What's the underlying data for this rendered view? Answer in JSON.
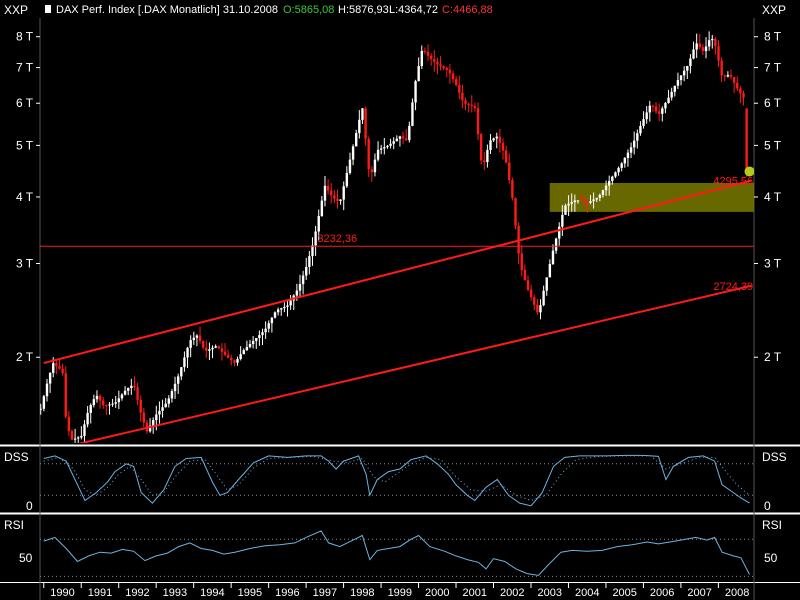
{
  "header": {
    "instrument": "DAX Perf. Index [.DAX  Monatlich] 31.10.2008",
    "open": "O:5865,08",
    "high": "H:5876,93",
    "low": "L:4364,72",
    "close": "C:4466,88",
    "axis_tag_left": "XXP",
    "axis_tag_right": "XXP"
  },
  "colors": {
    "background": "#000000",
    "text": "#ffffff",
    "trend": "#ff1a1a",
    "open_value": "#37c837",
    "close_value": "#ff3333",
    "zone": "#7a7a00",
    "indicator": "#6fb2e0",
    "grid": "#8a8a8a",
    "panel_border": "#ffffff",
    "marker": "#b6c81a"
  },
  "chart_data": [
    {
      "type": "candlestick",
      "title": "DAX Perf. Index [.DAX  Monatlich] 31.10.2008",
      "y_scale": "log",
      "ylim": [
        1380,
        8600
      ],
      "y_ticks": [
        2000,
        3000,
        4000,
        5000,
        6000,
        7000,
        8000
      ],
      "y_tick_labels": [
        "2 T",
        "3 T",
        "4 T",
        "5 T",
        "6 T",
        "7 T",
        "8 T"
      ],
      "x_range": [
        1989.9,
        2008.95
      ],
      "x_tick_labels": [
        "1990",
        "1991",
        "1992",
        "1993",
        "1994",
        "1995",
        "1996",
        "1997",
        "1998",
        "1999",
        "2000",
        "2001",
        "2002",
        "2003",
        "2004",
        "2005",
        "2006",
        "2007",
        "2008"
      ],
      "last_bar": {
        "open": 5865.08,
        "high": 5876.93,
        "low": 4364.72,
        "close": 4466.88,
        "date": "31.10.2008"
      },
      "path_points": [
        [
          1989.92,
          1600
        ],
        [
          1990.1,
          1800
        ],
        [
          1990.25,
          1950
        ],
        [
          1990.5,
          1880
        ],
        [
          1990.6,
          1500
        ],
        [
          1990.75,
          1400
        ],
        [
          1991.0,
          1420
        ],
        [
          1991.2,
          1600
        ],
        [
          1991.4,
          1700
        ],
        [
          1991.6,
          1620
        ],
        [
          1991.9,
          1640
        ],
        [
          1992.2,
          1740
        ],
        [
          1992.4,
          1780
        ],
        [
          1992.6,
          1560
        ],
        [
          1992.75,
          1450
        ],
        [
          1993.0,
          1560
        ],
        [
          1993.3,
          1650
        ],
        [
          1993.6,
          1850
        ],
        [
          1993.9,
          2150
        ],
        [
          1994.1,
          2200
        ],
        [
          1994.3,
          2050
        ],
        [
          1994.6,
          2100
        ],
        [
          1994.9,
          2000
        ],
        [
          1995.1,
          1950
        ],
        [
          1995.3,
          2050
        ],
        [
          1995.6,
          2150
        ],
        [
          1995.9,
          2250
        ],
        [
          1996.2,
          2450
        ],
        [
          1996.5,
          2500
        ],
        [
          1996.8,
          2700
        ],
        [
          1997.0,
          2950
        ],
        [
          1997.2,
          3300
        ],
        [
          1997.5,
          4200
        ],
        [
          1997.7,
          4000
        ],
        [
          1997.9,
          3900
        ],
        [
          1998.2,
          4800
        ],
        [
          1998.5,
          5900
        ],
        [
          1998.7,
          4300
        ],
        [
          1998.9,
          4900
        ],
        [
          1999.2,
          5000
        ],
        [
          1999.5,
          5200
        ],
        [
          1999.7,
          5100
        ],
        [
          1999.9,
          6500
        ],
        [
          2000.1,
          7600
        ],
        [
          2000.3,
          7300
        ],
        [
          2000.5,
          7100
        ],
        [
          2000.8,
          6900
        ],
        [
          2001.0,
          6500
        ],
        [
          2001.2,
          6000
        ],
        [
          2001.5,
          5900
        ],
        [
          2001.7,
          4500
        ],
        [
          2001.9,
          5100
        ],
        [
          2002.1,
          5200
        ],
        [
          2002.3,
          4800
        ],
        [
          2002.5,
          4000
        ],
        [
          2002.7,
          3000
        ],
        [
          2002.9,
          2700
        ],
        [
          2003.2,
          2400
        ],
        [
          2003.3,
          2600
        ],
        [
          2003.6,
          3200
        ],
        [
          2003.9,
          3850
        ],
        [
          2004.2,
          3950
        ],
        [
          2004.5,
          3900
        ],
        [
          2004.8,
          4000
        ],
        [
          2005.1,
          4300
        ],
        [
          2005.4,
          4600
        ],
        [
          2005.7,
          5000
        ],
        [
          2005.9,
          5400
        ],
        [
          2006.2,
          6000
        ],
        [
          2006.4,
          5700
        ],
        [
          2006.7,
          6200
        ],
        [
          2006.9,
          6600
        ],
        [
          2007.2,
          7100
        ],
        [
          2007.4,
          7800
        ],
        [
          2007.6,
          7500
        ],
        [
          2007.8,
          8000
        ],
        [
          2007.9,
          7800
        ],
        [
          2008.1,
          6700
        ],
        [
          2008.3,
          6800
        ],
        [
          2008.5,
          6400
        ],
        [
          2008.7,
          6100
        ],
        [
          2008.8,
          5800
        ],
        [
          2008.83,
          4467
        ]
      ],
      "horizontal_line": {
        "value": 3232.36,
        "label": "3232,36"
      },
      "trend_lines": [
        {
          "from": [
            1990.0,
            1950
          ],
          "to": [
            2008.88,
            4295
          ],
          "end_label": "4295,56"
        },
        {
          "from": [
            1990.45,
            1350
          ],
          "to": [
            2008.88,
            2724.39
          ],
          "end_label": "2724,39"
        }
      ],
      "zone": {
        "x": [
          2003.5,
          2008.95
        ],
        "y": [
          3750,
          4250
        ]
      },
      "marker": {
        "x": 2008.83,
        "y": 4467
      }
    },
    {
      "type": "line",
      "title": "DSS",
      "ylim": [
        -10,
        110
      ],
      "y_tick_labels": [
        "0"
      ],
      "guide_levels": [
        20,
        80
      ],
      "series": [
        {
          "name": "",
          "style": "solid",
          "points": [
            [
              1990.0,
              90
            ],
            [
              1990.3,
              95
            ],
            [
              1990.6,
              85
            ],
            [
              1990.9,
              40
            ],
            [
              1991.1,
              10
            ],
            [
              1991.4,
              25
            ],
            [
              1991.7,
              45
            ],
            [
              1991.9,
              65
            ],
            [
              1992.2,
              80
            ],
            [
              1992.4,
              75
            ],
            [
              1992.6,
              25
            ],
            [
              1992.9,
              5
            ],
            [
              1993.2,
              30
            ],
            [
              1993.5,
              75
            ],
            [
              1993.8,
              90
            ],
            [
              1994.2,
              92
            ],
            [
              1994.5,
              45
            ],
            [
              1994.7,
              20
            ],
            [
              1994.9,
              25
            ],
            [
              1995.2,
              50
            ],
            [
              1995.6,
              82
            ],
            [
              1996.0,
              95
            ],
            [
              1996.5,
              92
            ],
            [
              1997.0,
              95
            ],
            [
              1997.4,
              95
            ],
            [
              1997.6,
              85
            ],
            [
              1997.8,
              70
            ],
            [
              1998.0,
              85
            ],
            [
              1998.4,
              95
            ],
            [
              1998.6,
              60
            ],
            [
              1998.7,
              20
            ],
            [
              1998.9,
              50
            ],
            [
              1999.2,
              65
            ],
            [
              1999.5,
              70
            ],
            [
              1999.8,
              88
            ],
            [
              2000.2,
              95
            ],
            [
              2000.5,
              80
            ],
            [
              2000.8,
              60
            ],
            [
              2001.0,
              40
            ],
            [
              2001.3,
              20
            ],
            [
              2001.5,
              10
            ],
            [
              2001.8,
              35
            ],
            [
              2002.1,
              50
            ],
            [
              2002.4,
              20
            ],
            [
              2002.7,
              5
            ],
            [
              2003.0,
              0
            ],
            [
              2003.3,
              25
            ],
            [
              2003.6,
              75
            ],
            [
              2003.9,
              92
            ],
            [
              2004.3,
              95
            ],
            [
              2004.6,
              95
            ],
            [
              2005.0,
              95
            ],
            [
              2005.5,
              96
            ],
            [
              2006.0,
              96
            ],
            [
              2006.4,
              94
            ],
            [
              2006.6,
              50
            ],
            [
              2006.8,
              75
            ],
            [
              2007.2,
              92
            ],
            [
              2007.6,
              95
            ],
            [
              2007.9,
              85
            ],
            [
              2008.1,
              40
            ],
            [
              2008.4,
              25
            ],
            [
              2008.6,
              15
            ],
            [
              2008.83,
              5
            ]
          ]
        },
        {
          "name": "",
          "style": "dotted",
          "points": [
            [
              1990.0,
              85
            ],
            [
              1990.4,
              92
            ],
            [
              1990.8,
              70
            ],
            [
              1991.1,
              30
            ],
            [
              1991.4,
              20
            ],
            [
              1991.7,
              35
            ],
            [
              1992.0,
              60
            ],
            [
              1992.3,
              75
            ],
            [
              1992.6,
              50
            ],
            [
              1992.9,
              20
            ],
            [
              1993.2,
              25
            ],
            [
              1993.5,
              55
            ],
            [
              1993.9,
              85
            ],
            [
              1994.3,
              88
            ],
            [
              1994.6,
              60
            ],
            [
              1994.9,
              30
            ],
            [
              1995.2,
              40
            ],
            [
              1995.6,
              72
            ],
            [
              1996.0,
              90
            ],
            [
              1996.6,
              92
            ],
            [
              1997.2,
              94
            ],
            [
              1997.7,
              85
            ],
            [
              1998.1,
              82
            ],
            [
              1998.5,
              90
            ],
            [
              1998.8,
              55
            ],
            [
              1999.1,
              45
            ],
            [
              1999.4,
              60
            ],
            [
              1999.8,
              80
            ],
            [
              2000.2,
              92
            ],
            [
              2000.6,
              88
            ],
            [
              2001.0,
              55
            ],
            [
              2001.4,
              30
            ],
            [
              2001.8,
              28
            ],
            [
              2002.2,
              40
            ],
            [
              2002.6,
              20
            ],
            [
              2003.0,
              10
            ],
            [
              2003.4,
              20
            ],
            [
              2003.8,
              60
            ],
            [
              2004.2,
              88
            ],
            [
              2004.8,
              94
            ],
            [
              2005.5,
              95
            ],
            [
              2006.2,
              95
            ],
            [
              2006.6,
              70
            ],
            [
              2007.0,
              80
            ],
            [
              2007.5,
              92
            ],
            [
              2007.9,
              92
            ],
            [
              2008.2,
              65
            ],
            [
              2008.5,
              40
            ],
            [
              2008.83,
              20
            ]
          ]
        }
      ]
    },
    {
      "type": "line",
      "title": "RSI",
      "ylim": [
        25,
        95
      ],
      "y_tick_labels": [
        "50"
      ],
      "guide_levels": [
        30,
        70
      ],
      "series": [
        {
          "name": "",
          "style": "solid",
          "points": [
            [
              1990.0,
              68
            ],
            [
              1990.3,
              72
            ],
            [
              1990.6,
              60
            ],
            [
              1990.9,
              46
            ],
            [
              1991.2,
              52
            ],
            [
              1991.5,
              56
            ],
            [
              1991.8,
              55
            ],
            [
              1992.1,
              59
            ],
            [
              1992.4,
              57
            ],
            [
              1992.7,
              47
            ],
            [
              1993.0,
              52
            ],
            [
              1993.3,
              55
            ],
            [
              1993.6,
              62
            ],
            [
              1993.9,
              66
            ],
            [
              1994.2,
              60
            ],
            [
              1994.5,
              58
            ],
            [
              1994.8,
              54
            ],
            [
              1995.1,
              56
            ],
            [
              1995.5,
              60
            ],
            [
              1995.9,
              63
            ],
            [
              1996.3,
              64
            ],
            [
              1996.7,
              66
            ],
            [
              1997.0,
              72
            ],
            [
              1997.4,
              79
            ],
            [
              1997.6,
              66
            ],
            [
              1997.9,
              62
            ],
            [
              1998.3,
              70
            ],
            [
              1998.5,
              74
            ],
            [
              1998.7,
              48
            ],
            [
              1998.9,
              58
            ],
            [
              1999.2,
              60
            ],
            [
              1999.5,
              62
            ],
            [
              1999.8,
              70
            ],
            [
              2000.0,
              74
            ],
            [
              2000.3,
              62
            ],
            [
              2000.7,
              57
            ],
            [
              2001.0,
              52
            ],
            [
              2001.3,
              48
            ],
            [
              2001.6,
              45
            ],
            [
              2001.8,
              38
            ],
            [
              2002.0,
              49
            ],
            [
              2002.3,
              46
            ],
            [
              2002.6,
              38
            ],
            [
              2002.9,
              33
            ],
            [
              2003.2,
              31
            ],
            [
              2003.5,
              44
            ],
            [
              2003.8,
              56
            ],
            [
              2004.1,
              58
            ],
            [
              2004.5,
              57
            ],
            [
              2004.9,
              58
            ],
            [
              2005.3,
              62
            ],
            [
              2005.7,
              64
            ],
            [
              2006.1,
              67
            ],
            [
              2006.4,
              65
            ],
            [
              2006.7,
              67
            ],
            [
              2007.0,
              69
            ],
            [
              2007.4,
              72
            ],
            [
              2007.7,
              69
            ],
            [
              2007.9,
              72
            ],
            [
              2008.1,
              56
            ],
            [
              2008.4,
              52
            ],
            [
              2008.6,
              50
            ],
            [
              2008.83,
              32
            ]
          ]
        }
      ]
    }
  ]
}
